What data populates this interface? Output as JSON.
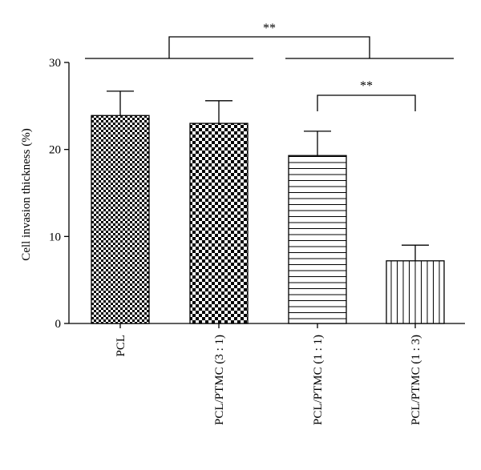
{
  "chart_data": {
    "type": "bar",
    "categories": [
      "PCL",
      "PCL/PTMC (3 : 1)",
      "PCL/PTMC (1 : 1)",
      "PCL/PTMC (1 : 3)"
    ],
    "values": [
      23.9,
      23.0,
      19.3,
      7.2
    ],
    "errors": [
      2.8,
      2.6,
      2.8,
      1.8
    ],
    "patterns": [
      "fine-checker",
      "coarse-checker",
      "horizontal-stripes",
      "vertical-stripes"
    ],
    "title": "",
    "xlabel": "",
    "ylabel": "Cell invasion thickness (%)",
    "ylim": [
      0,
      30
    ],
    "yticks": [
      0,
      10,
      20,
      30
    ],
    "grid": false,
    "significance": [
      {
        "label": "**",
        "type": "group",
        "left_groups": [
          0,
          1
        ],
        "right_groups": [
          2,
          3
        ]
      },
      {
        "label": "**",
        "type": "pair",
        "groups": [
          2,
          3
        ]
      }
    ]
  }
}
